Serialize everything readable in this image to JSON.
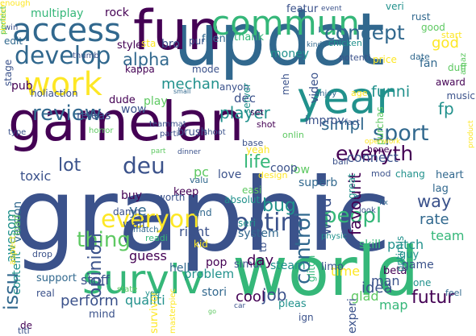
{
  "palette": {
    "dark_purple": "#440154",
    "indigo": "#3b528b",
    "slate": "#31688e",
    "teal": "#21918c",
    "green": "#35b779",
    "lime": "#5ec962",
    "yellow": "#fde725"
  },
  "words": [
    {
      "t": "graphic",
      "c": "#3b528b",
      "v": false
    },
    {
      "t": "updat",
      "c": "#31688e",
      "v": false
    },
    {
      "t": "world",
      "c": "#35b779",
      "v": false
    },
    {
      "t": "gamelan",
      "c": "#440154",
      "v": false
    },
    {
      "t": "fun",
      "c": "#440154",
      "v": false
    },
    {
      "t": "commun",
      "c": "#35b779",
      "v": false
    },
    {
      "t": "access",
      "c": "#31688e",
      "v": false
    },
    {
      "t": "work",
      "c": "#fde725",
      "v": false
    },
    {
      "t": "year",
      "c": "#21918c",
      "v": false
    },
    {
      "t": "surviv",
      "c": "#35b779",
      "v": false
    },
    {
      "t": "develop",
      "c": "#31688e",
      "v": false
    },
    {
      "t": "concept",
      "c": "#31688e",
      "v": false
    },
    {
      "t": "everyth",
      "c": "#440154",
      "v": false
    },
    {
      "t": "deu",
      "c": "#3b528b",
      "v": false
    },
    {
      "t": "everyon",
      "c": "#fde725",
      "v": false
    },
    {
      "t": "thing",
      "c": "#5ec962",
      "v": false
    },
    {
      "t": "optim",
      "c": "#3b528b",
      "v": false
    },
    {
      "t": "peopl",
      "c": "#35b779",
      "v": false
    },
    {
      "t": "alpha",
      "c": "#31688e",
      "v": false
    },
    {
      "t": "review",
      "c": "#31688e",
      "v": false
    },
    {
      "t": "sport",
      "c": "#31688e",
      "v": false
    },
    {
      "t": "lot",
      "c": "#3b528b",
      "v": false
    },
    {
      "t": "life",
      "c": "#35b779",
      "v": false
    },
    {
      "t": "player",
      "c": "#21918c",
      "v": false
    },
    {
      "t": "simpl",
      "c": "#31688e",
      "v": false
    },
    {
      "t": "way",
      "c": "#3b528b",
      "v": false
    },
    {
      "t": "funni",
      "c": "#21918c",
      "v": false
    },
    {
      "t": "fp",
      "c": "#21918c",
      "v": false
    },
    {
      "t": "control",
      "c": "#31688e",
      "v": true
    },
    {
      "t": "word",
      "c": "#3b528b",
      "v": true
    },
    {
      "t": "issu",
      "c": "#31688e",
      "v": true
    },
    {
      "t": "multiplay",
      "c": "#35b779",
      "v": false
    },
    {
      "t": "rock",
      "c": "#440154",
      "v": false
    },
    {
      "t": "featur",
      "c": "#3b528b",
      "v": false
    },
    {
      "t": "veri",
      "c": "#21918c",
      "v": false
    },
    {
      "t": "good",
      "c": "#5ec962",
      "v": false
    },
    {
      "t": "god",
      "c": "#fde725",
      "v": false
    },
    {
      "t": "rust",
      "c": "#31688e",
      "v": false
    },
    {
      "t": "date",
      "c": "#31688e",
      "v": false
    },
    {
      "t": "start",
      "c": "#fde725",
      "v": false
    },
    {
      "t": "style",
      "c": "#440154",
      "v": false
    },
    {
      "t": "bro",
      "c": "#3b528b",
      "v": false
    },
    {
      "t": "pur",
      "c": "#3b528b",
      "v": false
    },
    {
      "t": "friend",
      "c": "#31688e",
      "v": false
    },
    {
      "t": "thank",
      "c": "#35b779",
      "v": false
    },
    {
      "t": "money",
      "c": "#21918c",
      "v": false
    },
    {
      "t": "kappa",
      "c": "#440154",
      "v": false
    },
    {
      "t": "mode",
      "c": "#3b528b",
      "v": false
    },
    {
      "t": "mechan",
      "c": "#21918c",
      "v": false
    },
    {
      "t": "pub",
      "c": "#440154",
      "v": false
    },
    {
      "t": "holiaction",
      "c": "#3b528b",
      "v": false
    },
    {
      "t": "dude",
      "c": "#440154",
      "v": false
    },
    {
      "t": "wow",
      "c": "#3b528b",
      "v": false
    },
    {
      "t": "releas",
      "c": "#3b528b",
      "v": false
    },
    {
      "t": "play",
      "c": "#5ec962",
      "v": false
    },
    {
      "t": "improv",
      "c": "#3b528b",
      "v": false
    },
    {
      "t": "connect",
      "c": "#3b528b",
      "v": false
    },
    {
      "t": "fan",
      "c": "#31688e",
      "v": false
    },
    {
      "t": "duff",
      "c": "#5ec962",
      "v": false
    },
    {
      "t": "award",
      "c": "#440154",
      "v": false
    },
    {
      "t": "music",
      "c": "#3b528b",
      "v": false
    },
    {
      "t": "toxic",
      "c": "#3b528b",
      "v": false
    },
    {
      "t": "buy",
      "c": "#440154",
      "v": false
    },
    {
      "t": "love",
      "c": "#3b528b",
      "v": false
    },
    {
      "t": "pc",
      "c": "#5ec962",
      "v": false
    },
    {
      "t": "low",
      "c": "#5ec962",
      "v": false
    },
    {
      "t": "superb",
      "c": "#31688e",
      "v": false
    },
    {
      "t": "worth",
      "c": "#3b528b",
      "v": false
    },
    {
      "t": "absolut",
      "c": "#21918c",
      "v": false
    },
    {
      "t": "chang",
      "c": "#21918c",
      "v": false
    },
    {
      "t": "heart",
      "c": "#31688e",
      "v": false
    },
    {
      "t": "lag",
      "c": "#31688e",
      "v": false
    },
    {
      "t": "wait",
      "c": "#3b528b",
      "v": false
    },
    {
      "t": "ye",
      "c": "#31688e",
      "v": false
    },
    {
      "t": "rate",
      "c": "#31688e",
      "v": false
    },
    {
      "t": "favourit",
      "c": "#440154",
      "v": true
    },
    {
      "t": "team",
      "c": "#35b779",
      "v": false
    },
    {
      "t": "patch",
      "c": "#21918c",
      "v": false
    },
    {
      "t": "skill",
      "c": "#35b779",
      "v": false
    },
    {
      "t": "guess",
      "c": "#440154",
      "v": false
    },
    {
      "t": "pop",
      "c": "#440154",
      "v": false
    },
    {
      "t": "hell",
      "c": "#31688e",
      "v": false
    },
    {
      "t": "stuff",
      "c": "#3b528b",
      "v": false
    },
    {
      "t": "perform",
      "c": "#3b528b",
      "v": false
    },
    {
      "t": "qualiti",
      "c": "#21918c",
      "v": false
    },
    {
      "t": "stori",
      "c": "#31688e",
      "v": false
    },
    {
      "t": "cool",
      "c": "#440154",
      "v": false
    },
    {
      "t": "job",
      "c": "#3b528b",
      "v": false
    },
    {
      "t": "idea",
      "c": "#3b528b",
      "v": false
    },
    {
      "t": "map",
      "c": "#35b779",
      "v": false
    },
    {
      "t": "futur",
      "c": "#440154",
      "v": false
    },
    {
      "t": "man",
      "c": "#3b528b",
      "v": false
    },
    {
      "t": "guy",
      "c": "#21918c",
      "v": false
    },
    {
      "t": "beta",
      "c": "#440154",
      "v": false
    },
    {
      "t": "game",
      "c": "#3b528b",
      "v": false
    },
    {
      "t": "one",
      "c": "#21918c",
      "v": false
    },
    {
      "t": "glad",
      "c": "#5ec962",
      "v": false
    },
    {
      "t": "time",
      "c": "#fde725",
      "v": false
    },
    {
      "t": "steam",
      "c": "#21918c",
      "v": false
    },
    {
      "t": "simul",
      "c": "#3b528b",
      "v": false
    },
    {
      "t": "support",
      "c": "#31688e",
      "v": false
    },
    {
      "t": "real",
      "c": "#3b528b",
      "v": false
    },
    {
      "t": "mind",
      "c": "#3b528b",
      "v": false
    },
    {
      "t": "de",
      "c": "#440154",
      "v": false
    },
    {
      "t": "right",
      "c": "#3b528b",
      "v": false
    },
    {
      "t": "system",
      "c": "#31688e",
      "v": false
    },
    {
      "t": "seri",
      "c": "#21918c",
      "v": false
    },
    {
      "t": "bug",
      "c": "#21918c",
      "v": false
    },
    {
      "t": "limo",
      "c": "#3b528b",
      "v": false
    },
    {
      "t": "easi",
      "c": "#5ec962",
      "v": false
    },
    {
      "t": "coop",
      "c": "#3b528b",
      "v": false
    },
    {
      "t": "day",
      "c": "#440154",
      "v": false
    },
    {
      "t": "problem",
      "c": "#21918c",
      "v": false
    },
    {
      "t": "opinion",
      "c": "#3b528b",
      "v": true
    },
    {
      "t": "content",
      "c": "#21918c",
      "v": true
    },
    {
      "t": "awesom",
      "c": "#21918c",
      "v": true
    },
    {
      "t": "video",
      "c": "#3b528b",
      "v": true
    },
    {
      "t": "experi",
      "c": "#3b528b",
      "v": true
    },
    {
      "t": "version",
      "c": "#31688e",
      "v": true
    },
    {
      "t": "glitch",
      "c": "#35b779",
      "v": true
    },
    {
      "t": "tb",
      "c": "#3b528b",
      "v": true
    },
    {
      "t": "optimis",
      "c": "#21918c",
      "v": true
    },
    {
      "t": "purchas",
      "c": "#5ec962",
      "v": true
    },
    {
      "t": "amaz",
      "c": "#5ec962",
      "v": true
    },
    {
      "t": "product",
      "c": "#fde725",
      "v": true
    },
    {
      "t": "masterpiec",
      "c": "#fde725",
      "v": true
    },
    {
      "t": "survivor",
      "c": "#fde725",
      "v": true
    },
    {
      "t": "pleas",
      "c": "#21918c",
      "v": false
    },
    {
      "t": "ign",
      "c": "#3b528b",
      "v": false
    },
    {
      "t": "feel",
      "c": "#31688e",
      "v": false
    },
    {
      "t": "edit",
      "c": "#31688e",
      "v": false
    },
    {
      "t": "stage",
      "c": "#3b528b",
      "v": true
    },
    {
      "t": "sta",
      "c": "#fde725",
      "v": false
    },
    {
      "t": "dec",
      "c": "#3b528b",
      "v": false
    },
    {
      "t": "anyon",
      "c": "#3b528b",
      "v": false
    },
    {
      "t": "server",
      "c": "#21918c",
      "v": true
    },
    {
      "t": "meh",
      "c": "#3b528b",
      "v": true
    },
    {
      "t": "enjoy",
      "c": "#31688e",
      "v": false
    },
    {
      "t": "age",
      "c": "#fde725",
      "v": false
    },
    {
      "t": "price",
      "c": "#fde725",
      "v": false
    },
    {
      "t": "potenti",
      "c": "#3b528b",
      "v": false
    },
    {
      "t": "chicken",
      "c": "#21918c",
      "v": false
    },
    {
      "t": "set",
      "c": "#440154",
      "v": false
    },
    {
      "t": "brush",
      "c": "#3b528b",
      "v": false
    },
    {
      "t": "parti",
      "c": "#3b528b",
      "v": false
    },
    {
      "t": "shot",
      "c": "#440154",
      "v": false
    },
    {
      "t": "base",
      "c": "#3b528b",
      "v": false
    },
    {
      "t": "yeah",
      "c": "#fde725",
      "v": false
    },
    {
      "t": "onlin",
      "c": "#5ec962",
      "v": false
    },
    {
      "t": "end",
      "c": "#31688e",
      "v": false
    },
    {
      "t": "keep",
      "c": "#440154",
      "v": false
    },
    {
      "t": "damn",
      "c": "#3b528b",
      "v": false
    },
    {
      "t": "match",
      "c": "#31688e",
      "v": false
    },
    {
      "t": "readi",
      "c": "#35b779",
      "v": false
    },
    {
      "t": "kid",
      "c": "#fde725",
      "v": false
    },
    {
      "t": "ball",
      "c": "#3b528b",
      "v": false
    },
    {
      "t": "great",
      "c": "#21918c",
      "v": true
    },
    {
      "t": "mod",
      "c": "#3b528b",
      "v": false
    },
    {
      "t": "hope",
      "c": "#440154",
      "v": false
    },
    {
      "t": "look",
      "c": "#3b528b",
      "v": false
    },
    {
      "t": "fix",
      "c": "#31688e",
      "v": false
    },
    {
      "t": "physic",
      "c": "#21918c",
      "v": false
    },
    {
      "t": "load",
      "c": "#5ec962",
      "v": true
    },
    {
      "t": "aspect",
      "c": "#fde725",
      "v": true
    },
    {
      "t": "drop",
      "c": "#3b528b",
      "v": false
    },
    {
      "t": "state",
      "c": "#5ec962",
      "v": false
    },
    {
      "t": "yea",
      "c": "#21918c",
      "v": false
    },
    {
      "t": "shoot",
      "c": "#3b528b",
      "v": false
    },
    {
      "t": "valu",
      "c": "#31688e",
      "v": false
    },
    {
      "t": "type",
      "c": "#3b528b",
      "v": false
    },
    {
      "t": "horror",
      "c": "#5ec962",
      "v": false
    },
    {
      "t": "teammat",
      "c": "#3b528b",
      "v": false
    },
    {
      "t": "part",
      "c": "#5ec962",
      "v": false
    },
    {
      "t": "dinner",
      "c": "#3b528b",
      "v": false
    },
    {
      "t": "win",
      "c": "#3b528b",
      "v": false
    },
    {
      "t": "thumb",
      "c": "#3b528b",
      "v": false
    },
    {
      "t": "kinda",
      "c": "#31688e",
      "v": false
    },
    {
      "t": "fact",
      "c": "#3b528b",
      "v": false
    },
    {
      "t": "openwork",
      "c": "#fde725",
      "v": false
    },
    {
      "t": "event",
      "c": "#3b528b",
      "v": false
    },
    {
      "t": "car",
      "c": "#3b528b",
      "v": false
    },
    {
      "t": "go",
      "c": "#5ec962",
      "v": false
    },
    {
      "t": "titl",
      "c": "#3b528b",
      "v": false
    },
    {
      "t": "design",
      "c": "#fde725",
      "v": false
    },
    {
      "t": "small",
      "c": "#31688e",
      "v": false
    },
    {
      "t": "shooter",
      "c": "#fde725",
      "v": true
    },
    {
      "t": "perfect",
      "c": "#5ec962",
      "v": true
    },
    {
      "t": "enough",
      "c": "#fde725",
      "v": false
    }
  ]
}
